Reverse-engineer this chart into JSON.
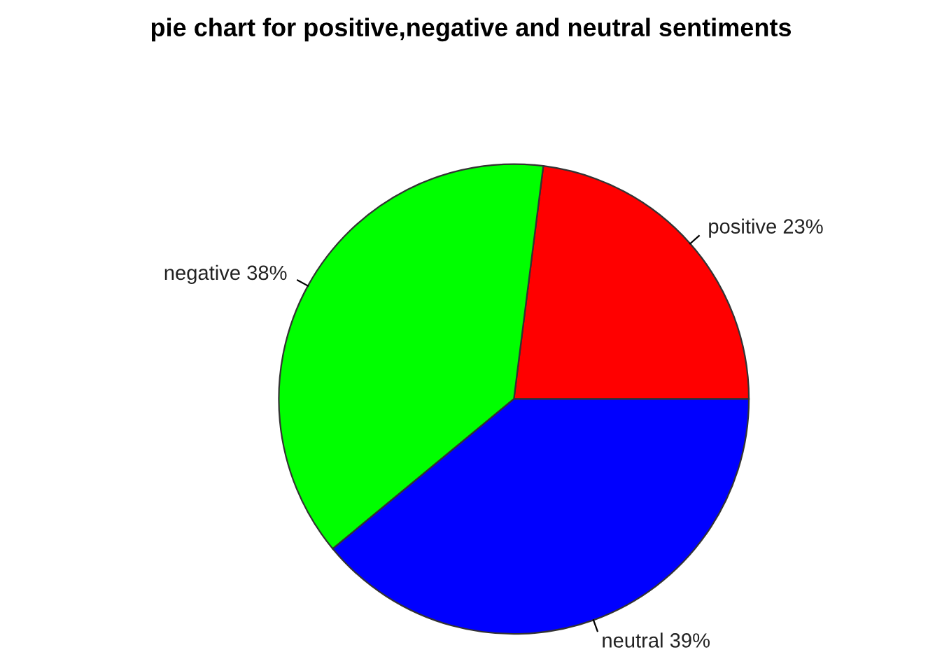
{
  "chart_data": {
    "type": "pie",
    "title": "pie chart for positive,negative and neutral sentiments",
    "categories": [
      "positive",
      "negative",
      "neutral"
    ],
    "values": [
      23,
      38,
      39
    ],
    "value_labels": [
      "23%",
      "38%",
      "39%"
    ],
    "colors": [
      "#ff0000",
      "#00ff00",
      "#0000ff"
    ],
    "legend": false
  }
}
